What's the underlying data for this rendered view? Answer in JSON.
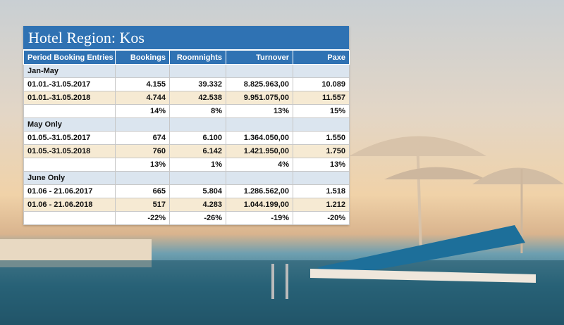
{
  "title": "Hotel Region: Kos",
  "table": {
    "header": [
      "Period Booking Entries",
      "Bookings",
      "Roomnights",
      "Turnover",
      "Paxe"
    ],
    "sections": [
      {
        "label": "Jan-May",
        "rows": [
          [
            "01.01.-31.05.2017",
            "4.155",
            "39.332",
            "8.825.963,00",
            "10.089"
          ],
          [
            "01.01.-31.05.2018",
            "4.744",
            "42.538",
            "9.951.075,00",
            "11.557"
          ]
        ],
        "change": [
          "14%",
          "8%",
          "13%",
          "15%"
        ]
      },
      {
        "label": "May Only",
        "rows": [
          [
            "01.05.-31.05.2017",
            "674",
            "6.100",
            "1.364.050,00",
            "1.550"
          ],
          [
            "01.05.-31.05.2018",
            "760",
            "6.142",
            "1.421.950,00",
            "1.750"
          ]
        ],
        "change": [
          "13%",
          "1%",
          "4%",
          "13%"
        ]
      },
      {
        "label": "June Only",
        "rows": [
          [
            "01.06 - 21.06.2017",
            "665",
            "5.804",
            "1.286.562,00",
            "1.518"
          ],
          [
            "01.06 - 21.06.2018",
            "517",
            "4.283",
            "1.044.199,00",
            "1.212"
          ]
        ],
        "change": [
          "-22%",
          "-26%",
          "-19%",
          "-20%"
        ]
      }
    ]
  }
}
